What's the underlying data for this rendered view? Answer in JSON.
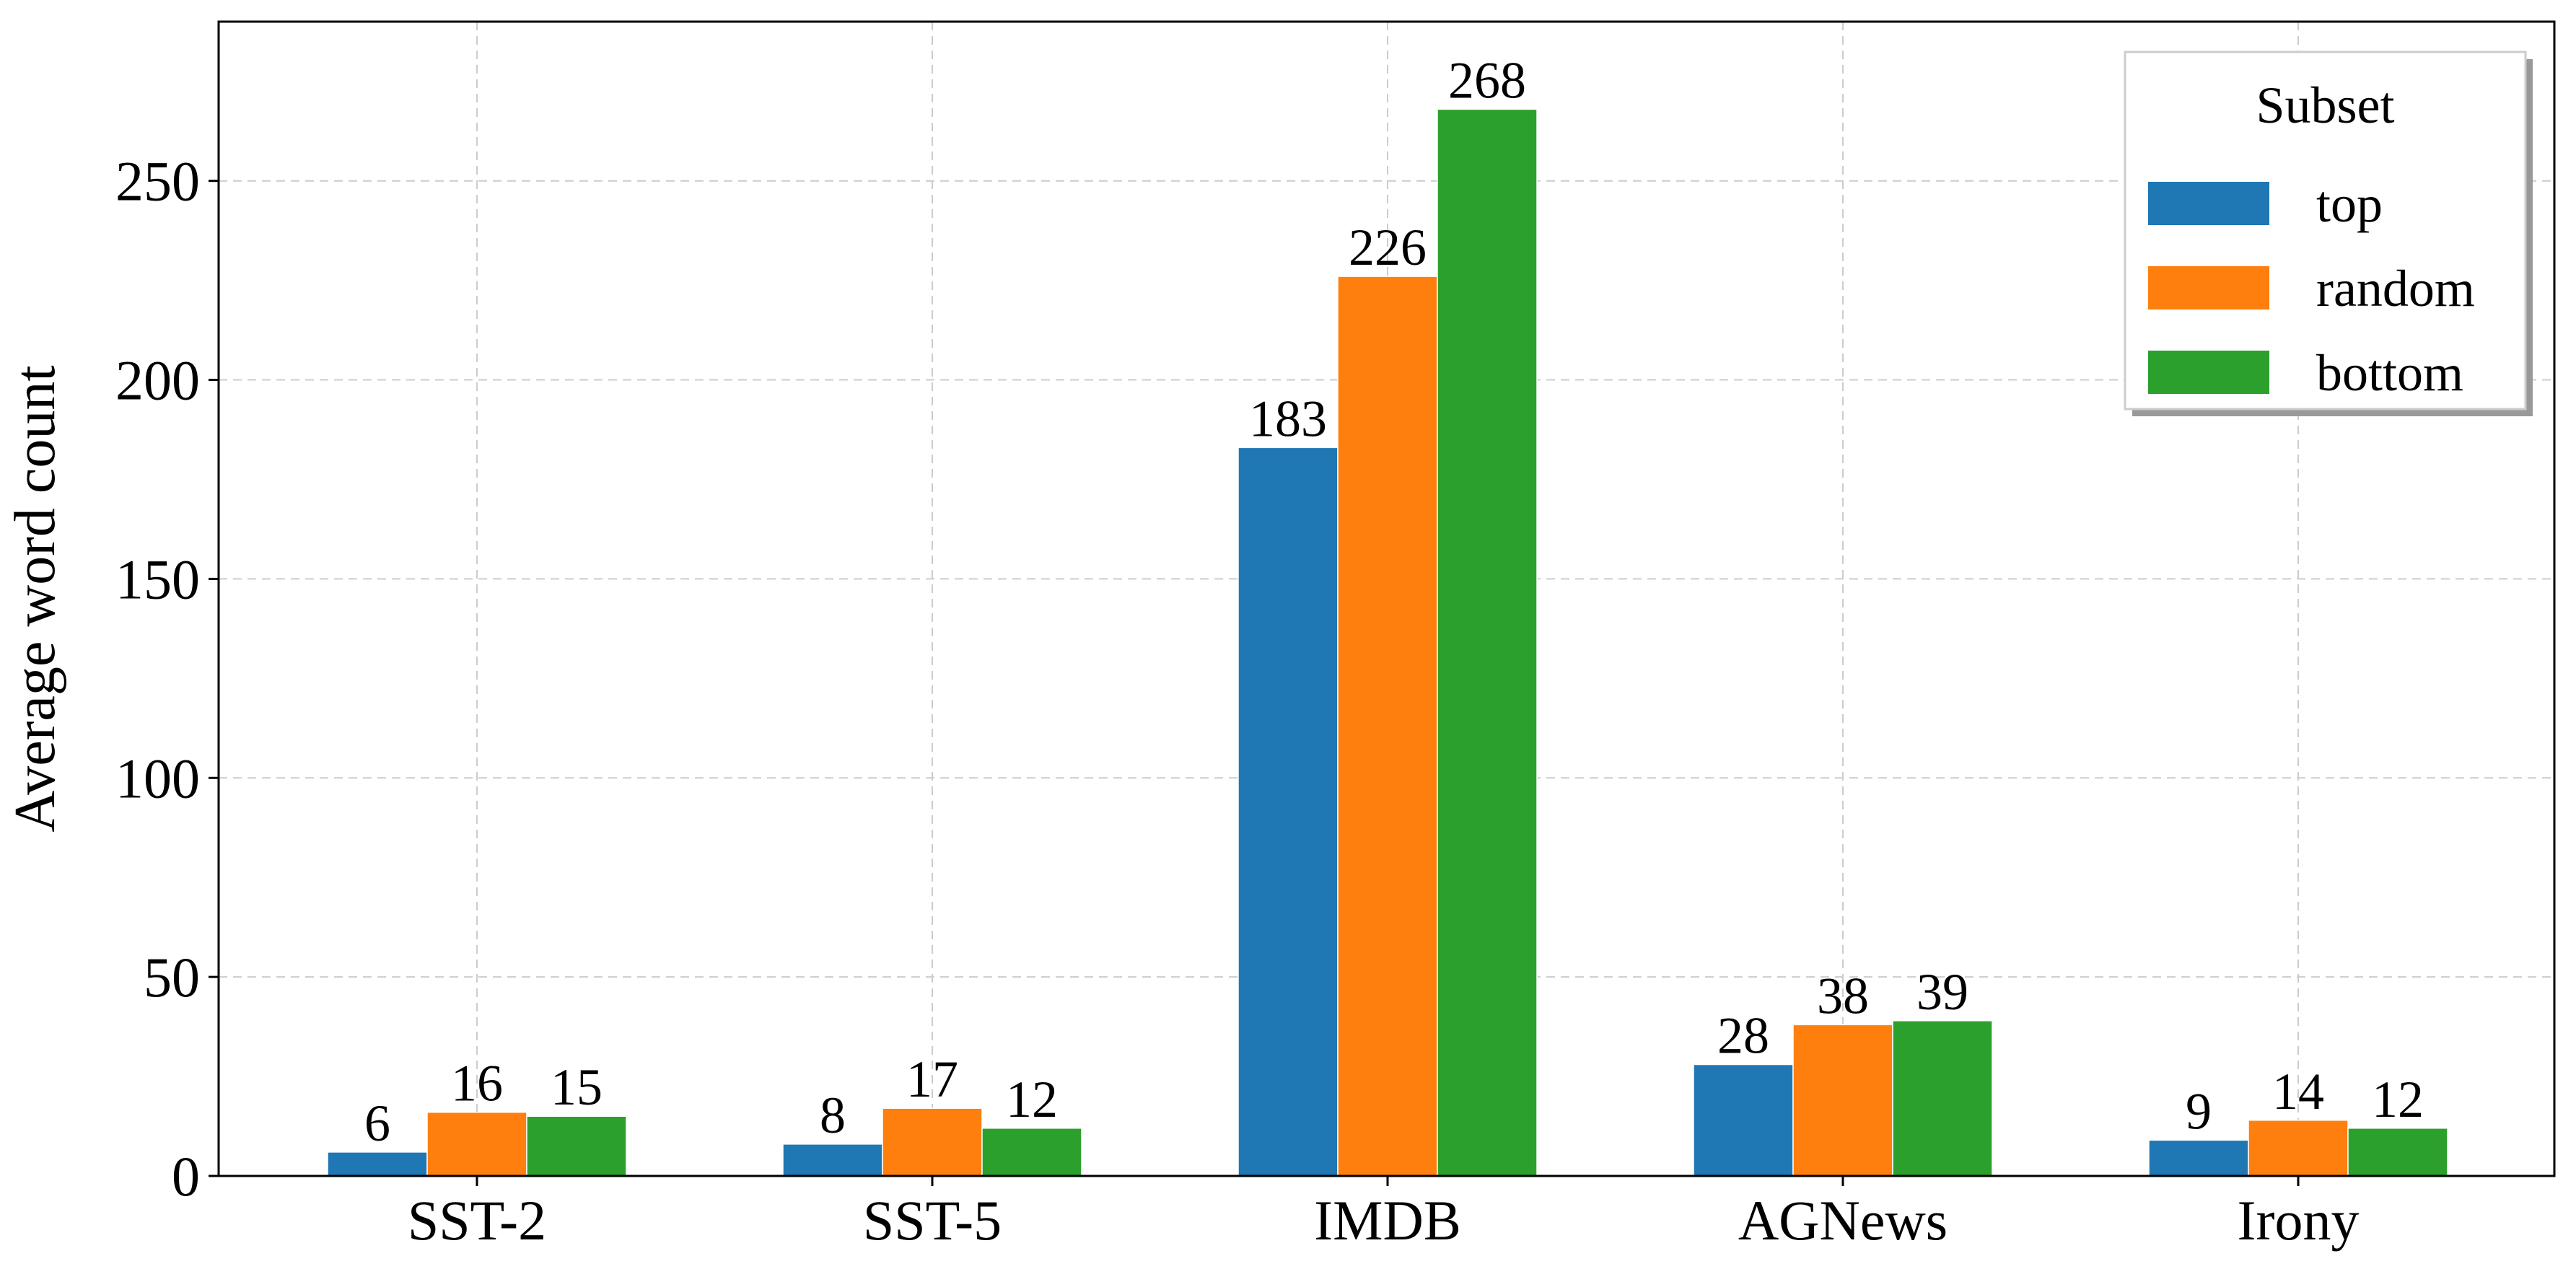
{
  "chart_data": {
    "type": "bar",
    "title": "",
    "xlabel": "",
    "ylabel": "Average word count",
    "categories": [
      "SST-2",
      "SST-5",
      "IMDB",
      "AGNews",
      "Irony"
    ],
    "series": [
      {
        "name": "top",
        "color": "#1f77b4",
        "values": [
          6,
          8,
          183,
          28,
          9
        ]
      },
      {
        "name": "random",
        "color": "#ff7f0e",
        "values": [
          16,
          17,
          226,
          38,
          14
        ]
      },
      {
        "name": "bottom",
        "color": "#2ca02c",
        "values": [
          15,
          12,
          268,
          39,
          12
        ]
      }
    ],
    "ylim": [
      0,
      290
    ],
    "yticks": [
      0,
      50,
      100,
      150,
      200,
      250
    ],
    "grid": true,
    "legend": {
      "title": "Subset",
      "placement": "top-right"
    }
  }
}
